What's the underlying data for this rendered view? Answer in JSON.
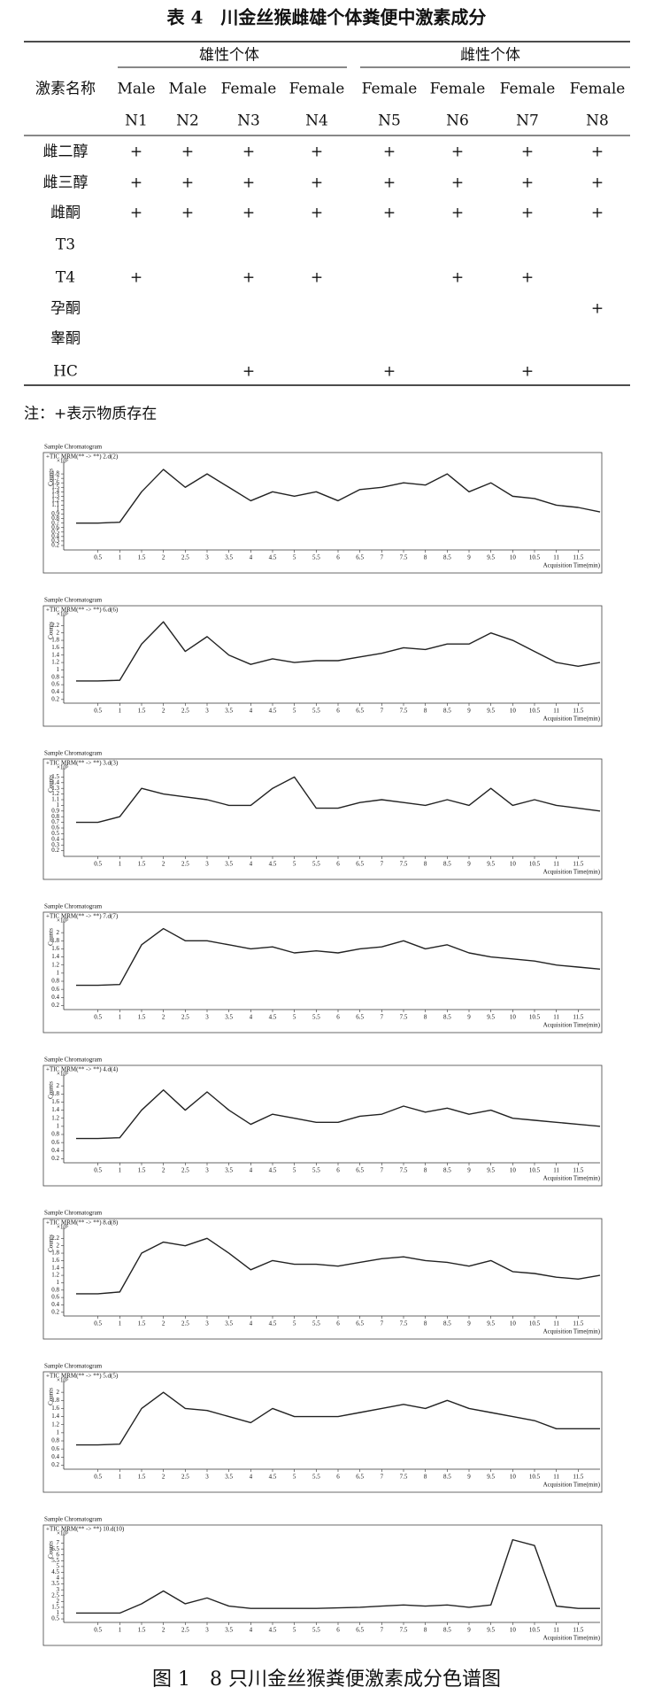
{
  "table": {
    "title": "表 4　川金丝猴雌雄个体粪便中激素成分",
    "row_header": "激素名称",
    "groups": [
      "雄性个体",
      "雌性个体"
    ],
    "columns": [
      {
        "sex": "Male",
        "id": "N1"
      },
      {
        "sex": "Male",
        "id": "N2"
      },
      {
        "sex": "Female",
        "id": "N3"
      },
      {
        "sex": "Female",
        "id": "N4"
      },
      {
        "sex": "Female",
        "id": "N5"
      },
      {
        "sex": "Female",
        "id": "N6"
      },
      {
        "sex": "Female",
        "id": "N7"
      },
      {
        "sex": "Female",
        "id": "N8"
      }
    ],
    "rows": [
      {
        "name": "雌二醇",
        "cells": [
          "+",
          "+",
          "+",
          "+",
          "+",
          "+",
          "+",
          "+"
        ]
      },
      {
        "name": "雌三醇",
        "cells": [
          "+",
          "+",
          "+",
          "+",
          "+",
          "+",
          "+",
          "+"
        ]
      },
      {
        "name": "雌酮",
        "cells": [
          "+",
          "+",
          "+",
          "+",
          "+",
          "+",
          "+",
          "+"
        ]
      },
      {
        "name": "T3",
        "cells": [
          null,
          null,
          null,
          null,
          null,
          null,
          null,
          null
        ]
      },
      {
        "name": "T4",
        "cells": [
          "+",
          null,
          "+",
          "+",
          null,
          "+",
          "+",
          null
        ]
      },
      {
        "name": "孕酮",
        "cells": [
          null,
          null,
          null,
          null,
          null,
          null,
          null,
          "+"
        ]
      },
      {
        "name": "睾酮",
        "cells": [
          null,
          null,
          null,
          null,
          null,
          null,
          null,
          null
        ]
      },
      {
        "name": "HC",
        "cells": [
          null,
          null,
          "+",
          null,
          "+",
          null,
          "+",
          null
        ]
      }
    ],
    "note": "注：+表示物质存在"
  },
  "figure": {
    "caption": "图 1　8 只川金丝猴粪便激素成分色谱图",
    "panel_title": "Sample Chromatogram",
    "y_label": "Counts",
    "y_multiplier": "×10⁵",
    "x_label": "Acquisition Time(min)",
    "xlim": [
      0,
      12
    ],
    "xticks": [
      0.5,
      1.0,
      1.5,
      2.0,
      2.5,
      3.0,
      3.5,
      4.0,
      4.5,
      5.0,
      5.5,
      6.0,
      6.5,
      7.0,
      7.5,
      8.0,
      8.5,
      9.0,
      9.5,
      10.0,
      10.5,
      11.0,
      11.5
    ],
    "x": [
      0,
      0.5,
      1,
      1.5,
      2,
      2.5,
      3,
      3.5,
      4,
      4.5,
      5,
      5.5,
      6,
      6.5,
      7,
      7.5,
      8,
      8.5,
      9,
      9.5,
      10,
      10.5,
      11,
      11.5,
      12
    ],
    "panels": [
      {
        "trace": "+TIC MRM(** -> **) 2.d(2)",
        "ylim": [
          0.1,
          2.0
        ],
        "yticks": [
          0.2,
          0.3,
          0.4,
          0.5,
          0.6,
          0.7,
          0.8,
          0.9,
          1.0,
          1.1,
          1.2,
          1.3,
          1.4,
          1.5,
          1.6,
          1.7,
          1.8
        ],
        "values": [
          0.7,
          0.7,
          0.72,
          1.4,
          1.9,
          1.5,
          1.8,
          1.5,
          1.2,
          1.4,
          1.3,
          1.4,
          1.2,
          1.45,
          1.5,
          1.6,
          1.55,
          1.8,
          1.4,
          1.6,
          1.3,
          1.25,
          1.1,
          1.05,
          0.95
        ]
      },
      {
        "trace": "+TIC MRM(** -> **) 6.d(6)",
        "ylim": [
          0.1,
          2.4
        ],
        "yticks": [
          0.2,
          0.4,
          0.6,
          0.8,
          1.0,
          1.2,
          1.4,
          1.6,
          1.8,
          2.0,
          2.2
        ],
        "values": [
          0.7,
          0.7,
          0.72,
          1.7,
          2.3,
          1.5,
          1.9,
          1.4,
          1.15,
          1.3,
          1.2,
          1.25,
          1.25,
          1.35,
          1.45,
          1.6,
          1.55,
          1.7,
          1.7,
          2.0,
          1.8,
          1.5,
          1.2,
          1.1,
          1.2
        ]
      },
      {
        "trace": "+TIC MRM(** -> **) 3.d(3)",
        "ylim": [
          0.1,
          1.6
        ],
        "yticks": [
          0.2,
          0.3,
          0.4,
          0.5,
          0.6,
          0.7,
          0.8,
          0.9,
          1.0,
          1.1,
          1.2,
          1.3,
          1.4,
          1.5
        ],
        "values": [
          0.7,
          0.7,
          0.8,
          1.3,
          1.2,
          1.15,
          1.1,
          1.0,
          1.0,
          1.3,
          1.5,
          0.95,
          0.95,
          1.05,
          1.1,
          1.05,
          1.0,
          1.1,
          1.0,
          1.3,
          1.0,
          1.1,
          1.0,
          0.95,
          0.9
        ]
      },
      {
        "trace": "+TIC MRM(** -> **) 7.d(7)",
        "ylim": [
          0.1,
          2.2
        ],
        "yticks": [
          0.2,
          0.4,
          0.6,
          0.8,
          1.0,
          1.2,
          1.4,
          1.6,
          1.8,
          2.0
        ],
        "values": [
          0.7,
          0.7,
          0.72,
          1.7,
          2.1,
          1.8,
          1.8,
          1.7,
          1.6,
          1.65,
          1.5,
          1.55,
          1.5,
          1.6,
          1.65,
          1.8,
          1.6,
          1.7,
          1.5,
          1.4,
          1.35,
          1.3,
          1.2,
          1.15,
          1.1
        ]
      },
      {
        "trace": "+TIC MRM(** -> **) 4.d(4)",
        "ylim": [
          0.1,
          2.2
        ],
        "yticks": [
          0.2,
          0.4,
          0.6,
          0.8,
          1.0,
          1.2,
          1.4,
          1.6,
          1.8,
          2.0
        ],
        "values": [
          0.7,
          0.7,
          0.72,
          1.4,
          1.9,
          1.4,
          1.85,
          1.4,
          1.05,
          1.3,
          1.2,
          1.1,
          1.1,
          1.25,
          1.3,
          1.5,
          1.35,
          1.45,
          1.3,
          1.4,
          1.2,
          1.15,
          1.1,
          1.05,
          1.0
        ]
      },
      {
        "trace": "+TIC MRM(** -> **) 8.d(8)",
        "ylim": [
          0.1,
          2.4
        ],
        "yticks": [
          0.2,
          0.4,
          0.6,
          0.8,
          1.0,
          1.2,
          1.4,
          1.6,
          1.8,
          2.0,
          2.2
        ],
        "values": [
          0.7,
          0.7,
          0.75,
          1.8,
          2.1,
          2.0,
          2.2,
          1.8,
          1.35,
          1.6,
          1.5,
          1.5,
          1.45,
          1.55,
          1.65,
          1.7,
          1.6,
          1.55,
          1.45,
          1.6,
          1.3,
          1.25,
          1.15,
          1.1,
          1.2
        ]
      },
      {
        "trace": "+TIC MRM(** -> **) 5.d(5)",
        "ylim": [
          0.1,
          2.2
        ],
        "yticks": [
          0.2,
          0.4,
          0.6,
          0.8,
          1.0,
          1.2,
          1.4,
          1.6,
          1.8,
          2.0
        ],
        "values": [
          0.7,
          0.7,
          0.72,
          1.6,
          2.0,
          1.6,
          1.55,
          1.4,
          1.25,
          1.6,
          1.4,
          1.4,
          1.4,
          1.5,
          1.6,
          1.7,
          1.6,
          1.8,
          1.6,
          1.5,
          1.4,
          1.3,
          1.1,
          1.1,
          1.1
        ]
      },
      {
        "trace": "+TIC MRM(** -> **) 10.d(10)",
        "ylim": [
          0.2,
          7.5
        ],
        "yticks": [
          0.5,
          1.0,
          1.5,
          2.0,
          2.5,
          3.0,
          3.5,
          4.0,
          4.5,
          5.0,
          5.5,
          6.0,
          6.5,
          7.0
        ],
        "values": [
          1.0,
          1.0,
          1.0,
          1.8,
          2.9,
          1.8,
          2.3,
          1.6,
          1.4,
          1.4,
          1.4,
          1.4,
          1.45,
          1.5,
          1.6,
          1.7,
          1.6,
          1.7,
          1.5,
          1.7,
          7.3,
          6.8,
          1.6,
          1.4,
          1.4
        ]
      }
    ]
  }
}
